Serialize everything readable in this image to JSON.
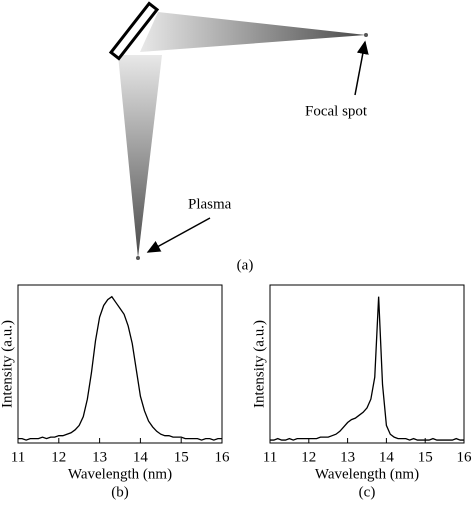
{
  "diagram": {
    "focal_label": "Focal spot",
    "plasma_label": "Plasma",
    "caption": "(a)"
  },
  "chart_data": [
    {
      "type": "line",
      "caption": "(b)",
      "xlabel": "Wavelength (nm)",
      "ylabel": "Intensity (a.u.)",
      "color": "#000000",
      "xlim": [
        11,
        16
      ],
      "xticks": [
        11,
        12,
        13,
        14,
        15,
        16
      ],
      "ylim": [
        0,
        1.08
      ],
      "x": [
        11,
        11.1,
        11.2,
        11.3,
        11.4,
        11.5,
        11.6,
        11.7,
        11.8,
        11.9,
        12,
        12.1,
        12.2,
        12.3,
        12.4,
        12.5,
        12.6,
        12.7,
        12.8,
        12.9,
        13,
        13.1,
        13.2,
        13.3,
        13.4,
        13.5,
        13.6,
        13.7,
        13.8,
        13.9,
        14,
        14.1,
        14.2,
        14.3,
        14.4,
        14.5,
        14.6,
        14.7,
        14.8,
        14.9,
        15,
        15.1,
        15.2,
        15.3,
        15.4,
        15.5,
        15.6,
        15.7,
        15.8,
        15.9,
        16
      ],
      "values": [
        0.03,
        0.03,
        0.02,
        0.03,
        0.03,
        0.03,
        0.04,
        0.03,
        0.04,
        0.04,
        0.05,
        0.05,
        0.06,
        0.07,
        0.09,
        0.12,
        0.18,
        0.3,
        0.48,
        0.7,
        0.86,
        0.94,
        0.98,
        1.0,
        0.96,
        0.92,
        0.88,
        0.8,
        0.68,
        0.5,
        0.32,
        0.22,
        0.15,
        0.11,
        0.08,
        0.06,
        0.05,
        0.05,
        0.04,
        0.04,
        0.04,
        0.03,
        0.03,
        0.03,
        0.03,
        0.02,
        0.03,
        0.03,
        0.02,
        0.03,
        0.03
      ]
    },
    {
      "type": "line",
      "caption": "(c)",
      "xlabel": "Wavelength (nm)",
      "ylabel": "Intensity (a.u.)",
      "color": "#000000",
      "xlim": [
        11,
        16
      ],
      "xticks": [
        11,
        12,
        13,
        14,
        15,
        16
      ],
      "ylim": [
        0,
        1.08
      ],
      "x": [
        11,
        11.1,
        11.2,
        11.3,
        11.4,
        11.5,
        11.6,
        11.7,
        11.8,
        11.9,
        12,
        12.1,
        12.2,
        12.3,
        12.4,
        12.5,
        12.6,
        12.7,
        12.8,
        12.9,
        13,
        13.1,
        13.2,
        13.3,
        13.4,
        13.5,
        13.6,
        13.7,
        13.8,
        13.9,
        14,
        14.1,
        14.2,
        14.3,
        14.4,
        14.5,
        14.6,
        14.7,
        14.8,
        14.9,
        15,
        15.1,
        15.2,
        15.3,
        15.4,
        15.5,
        15.6,
        15.7,
        15.8,
        15.9,
        16
      ],
      "values": [
        0.02,
        0.02,
        0.03,
        0.02,
        0.02,
        0.03,
        0.02,
        0.03,
        0.03,
        0.03,
        0.03,
        0.03,
        0.03,
        0.04,
        0.04,
        0.04,
        0.05,
        0.06,
        0.08,
        0.11,
        0.14,
        0.16,
        0.17,
        0.19,
        0.21,
        0.24,
        0.3,
        0.45,
        1.0,
        0.4,
        0.12,
        0.06,
        0.04,
        0.03,
        0.03,
        0.03,
        0.02,
        0.03,
        0.02,
        0.02,
        0.02,
        0.02,
        0.03,
        0.02,
        0.02,
        0.02,
        0.02,
        0.02,
        0.03,
        0.02,
        0.02
      ]
    }
  ]
}
